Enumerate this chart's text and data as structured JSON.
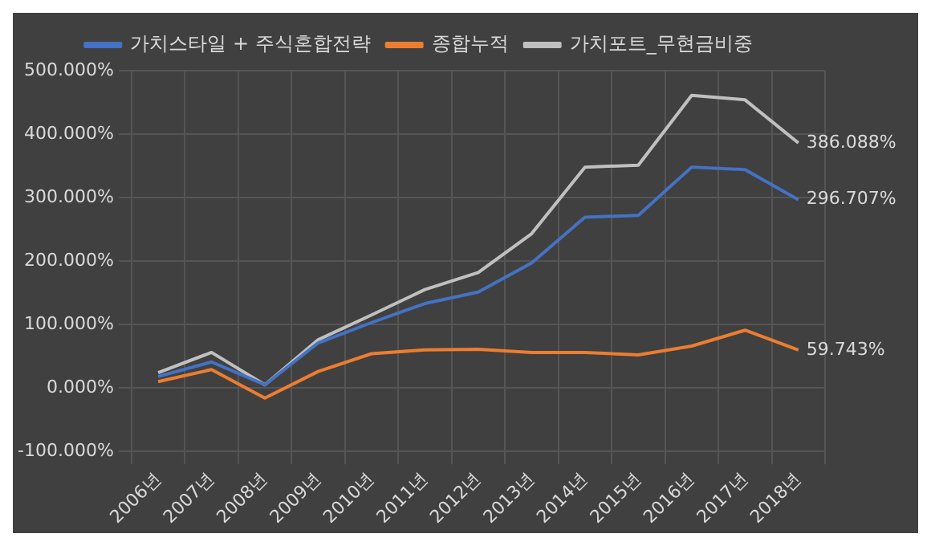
{
  "chart_data": {
    "type": "line",
    "categories": [
      "2006년",
      "2007년",
      "2008년",
      "2009년",
      "2010년",
      "2011년",
      "2012년",
      "2013년",
      "2014년",
      "2015년",
      "2016년",
      "2017년",
      "2018년"
    ],
    "series": [
      {
        "name": "가치스타일 + 주식혼합전략",
        "color": "#4472c4",
        "values": [
          18,
          41,
          5,
          71,
          103,
          133,
          151,
          197,
          269,
          272,
          348,
          344,
          296.707
        ],
        "value_labels": [
          null,
          null,
          null,
          null,
          null,
          null,
          null,
          null,
          null,
          null,
          null,
          null,
          "296.707%"
        ]
      },
      {
        "name": "종합누적",
        "color": "#ed7d31",
        "values": [
          10,
          29,
          -16,
          26,
          54,
          60,
          61,
          56,
          56,
          52,
          66,
          91,
          59.743
        ],
        "value_labels": [
          null,
          null,
          null,
          null,
          null,
          null,
          null,
          null,
          null,
          null,
          null,
          null,
          "59.743%"
        ]
      },
      {
        "name": "가치포트_무현금비중",
        "color": "#c0c0c0",
        "values": [
          24,
          56,
          5,
          76,
          115,
          155,
          182,
          243,
          348,
          351,
          461,
          454,
          386.088
        ],
        "value_labels": [
          null,
          null,
          null,
          null,
          null,
          null,
          null,
          null,
          null,
          null,
          null,
          null,
          "386.088%"
        ]
      }
    ],
    "ylim": [
      -100,
      500
    ],
    "yticks": [
      {
        "value": -100,
        "label": "-100.000%"
      },
      {
        "value": 0,
        "label": "0.000%"
      },
      {
        "value": 100,
        "label": "100.000%"
      },
      {
        "value": 200,
        "label": "200.000%"
      },
      {
        "value": 300,
        "label": "300.000%"
      },
      {
        "value": 400,
        "label": "400.000%"
      },
      {
        "value": 500,
        "label": "500.000%"
      }
    ],
    "grid": true,
    "legend": "top",
    "marker": "none",
    "line_style": "solid"
  }
}
